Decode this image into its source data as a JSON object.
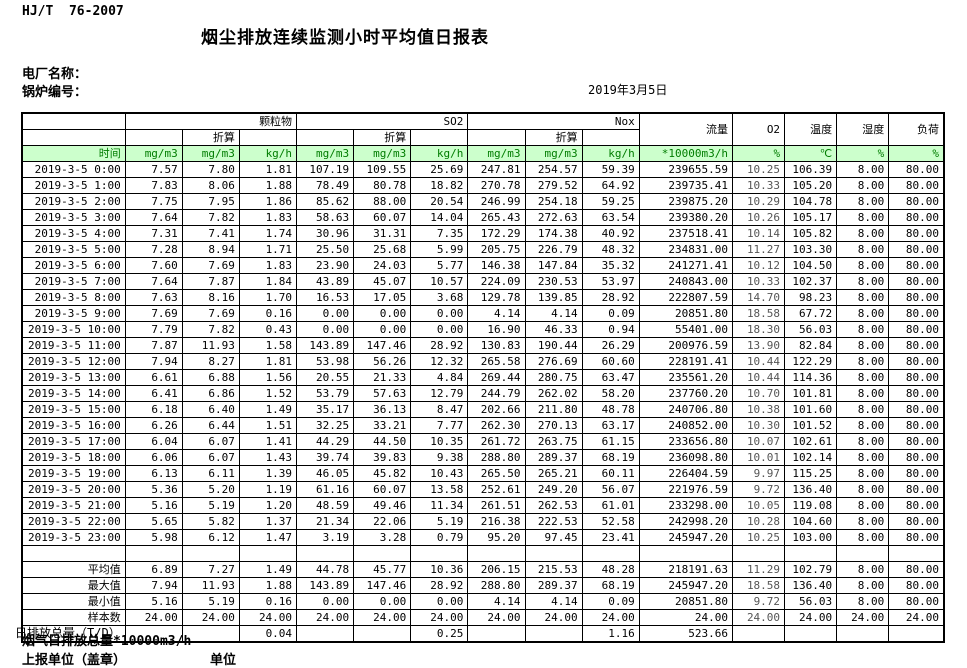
{
  "header": {
    "standard_code": "HJ/T  76-2007",
    "title": "烟尘排放连续监测小时平均值日报表",
    "plant_label": "电厂名称：",
    "boiler_label": "锅炉编号：",
    "date": "2019年3月5日"
  },
  "table": {
    "group_pm": "颗粒物",
    "group_so2": "SO2",
    "group_nox": "Nox",
    "group_flow": "流量",
    "group_o2": "O2",
    "group_temp": "温度",
    "group_humidity": "湿度",
    "group_load": "负荷",
    "converted_label": "折算",
    "time_header": "时间",
    "units": [
      "mg/m3",
      "mg/m3",
      "kg/h",
      "mg/m3",
      "mg/m3",
      "kg/h",
      "mg/m3",
      "mg/m3",
      "kg/h",
      "*10000m3/h",
      "%",
      "℃",
      "%",
      "%"
    ],
    "rows": [
      {
        "time": "2019-3-5 0:00",
        "values": [
          "7.57",
          "7.80",
          "1.81",
          "107.19",
          "109.55",
          "25.69",
          "247.81",
          "254.57",
          "59.39",
          "239655.59",
          "10.25",
          "106.39",
          "8.00",
          "80.00"
        ]
      },
      {
        "time": "2019-3-5 1:00",
        "values": [
          "7.83",
          "8.06",
          "1.88",
          "78.49",
          "80.78",
          "18.82",
          "270.78",
          "279.52",
          "64.92",
          "239735.41",
          "10.33",
          "105.20",
          "8.00",
          "80.00"
        ]
      },
      {
        "time": "2019-3-5 2:00",
        "values": [
          "7.75",
          "7.95",
          "1.86",
          "85.62",
          "88.00",
          "20.54",
          "246.99",
          "254.18",
          "59.25",
          "239875.20",
          "10.29",
          "104.78",
          "8.00",
          "80.00"
        ]
      },
      {
        "time": "2019-3-5 3:00",
        "values": [
          "7.64",
          "7.82",
          "1.83",
          "58.63",
          "60.07",
          "14.04",
          "265.43",
          "272.63",
          "63.54",
          "239380.20",
          "10.26",
          "105.17",
          "8.00",
          "80.00"
        ]
      },
      {
        "time": "2019-3-5 4:00",
        "values": [
          "7.31",
          "7.41",
          "1.74",
          "30.96",
          "31.31",
          "7.35",
          "172.29",
          "174.38",
          "40.92",
          "237518.41",
          "10.14",
          "105.82",
          "8.00",
          "80.00"
        ]
      },
      {
        "time": "2019-3-5 5:00",
        "values": [
          "7.28",
          "8.94",
          "1.71",
          "25.50",
          "25.68",
          "5.99",
          "205.75",
          "226.79",
          "48.32",
          "234831.00",
          "11.27",
          "103.30",
          "8.00",
          "80.00"
        ]
      },
      {
        "time": "2019-3-5 6:00",
        "values": [
          "7.60",
          "7.69",
          "1.83",
          "23.90",
          "24.03",
          "5.77",
          "146.38",
          "147.84",
          "35.32",
          "241271.41",
          "10.12",
          "104.50",
          "8.00",
          "80.00"
        ]
      },
      {
        "time": "2019-3-5 7:00",
        "values": [
          "7.64",
          "7.87",
          "1.84",
          "43.89",
          "45.07",
          "10.57",
          "224.09",
          "230.53",
          "53.97",
          "240843.00",
          "10.33",
          "102.37",
          "8.00",
          "80.00"
        ]
      },
      {
        "time": "2019-3-5 8:00",
        "values": [
          "7.63",
          "8.16",
          "1.70",
          "16.53",
          "17.05",
          "3.68",
          "129.78",
          "139.85",
          "28.92",
          "222807.59",
          "14.70",
          "98.23",
          "8.00",
          "80.00"
        ]
      },
      {
        "time": "2019-3-5 9:00",
        "values": [
          "7.69",
          "7.69",
          "0.16",
          "0.00",
          "0.00",
          "0.00",
          "4.14",
          "4.14",
          "0.09",
          "20851.80",
          "18.58",
          "67.72",
          "8.00",
          "80.00"
        ]
      },
      {
        "time": "2019-3-5 10:00",
        "values": [
          "7.79",
          "7.82",
          "0.43",
          "0.00",
          "0.00",
          "0.00",
          "16.90",
          "46.33",
          "0.94",
          "55401.00",
          "18.30",
          "56.03",
          "8.00",
          "80.00"
        ]
      },
      {
        "time": "2019-3-5 11:00",
        "values": [
          "7.87",
          "11.93",
          "1.58",
          "143.89",
          "147.46",
          "28.92",
          "130.83",
          "190.44",
          "26.29",
          "200976.59",
          "13.90",
          "82.84",
          "8.00",
          "80.00"
        ]
      },
      {
        "time": "2019-3-5 12:00",
        "values": [
          "7.94",
          "8.27",
          "1.81",
          "53.98",
          "56.26",
          "12.32",
          "265.58",
          "276.69",
          "60.60",
          "228191.41",
          "10.44",
          "122.29",
          "8.00",
          "80.00"
        ]
      },
      {
        "time": "2019-3-5 13:00",
        "values": [
          "6.61",
          "6.88",
          "1.56",
          "20.55",
          "21.33",
          "4.84",
          "269.44",
          "280.75",
          "63.47",
          "235561.20",
          "10.44",
          "114.36",
          "8.00",
          "80.00"
        ]
      },
      {
        "time": "2019-3-5 14:00",
        "values": [
          "6.41",
          "6.86",
          "1.52",
          "53.79",
          "57.63",
          "12.79",
          "244.79",
          "262.02",
          "58.20",
          "237760.20",
          "10.70",
          "101.81",
          "8.00",
          "80.00"
        ]
      },
      {
        "time": "2019-3-5 15:00",
        "values": [
          "6.18",
          "6.40",
          "1.49",
          "35.17",
          "36.13",
          "8.47",
          "202.66",
          "211.80",
          "48.78",
          "240706.80",
          "10.38",
          "101.60",
          "8.00",
          "80.00"
        ]
      },
      {
        "time": "2019-3-5 16:00",
        "values": [
          "6.26",
          "6.44",
          "1.51",
          "32.25",
          "33.21",
          "7.77",
          "262.30",
          "270.13",
          "63.17",
          "240852.00",
          "10.30",
          "101.52",
          "8.00",
          "80.00"
        ]
      },
      {
        "time": "2019-3-5 17:00",
        "values": [
          "6.04",
          "6.07",
          "1.41",
          "44.29",
          "44.50",
          "10.35",
          "261.72",
          "263.75",
          "61.15",
          "233656.80",
          "10.07",
          "102.61",
          "8.00",
          "80.00"
        ]
      },
      {
        "time": "2019-3-5 18:00",
        "values": [
          "6.06",
          "6.07",
          "1.43",
          "39.74",
          "39.83",
          "9.38",
          "288.80",
          "289.37",
          "68.19",
          "236098.80",
          "10.01",
          "102.14",
          "8.00",
          "80.00"
        ]
      },
      {
        "time": "2019-3-5 19:00",
        "values": [
          "6.13",
          "6.11",
          "1.39",
          "46.05",
          "45.82",
          "10.43",
          "265.50",
          "265.21",
          "60.11",
          "226404.59",
          "9.97",
          "115.25",
          "8.00",
          "80.00"
        ]
      },
      {
        "time": "2019-3-5 20:00",
        "values": [
          "5.36",
          "5.20",
          "1.19",
          "61.16",
          "60.07",
          "13.58",
          "252.61",
          "249.20",
          "56.07",
          "221976.59",
          "9.72",
          "136.40",
          "8.00",
          "80.00"
        ]
      },
      {
        "time": "2019-3-5 21:00",
        "values": [
          "5.16",
          "5.19",
          "1.20",
          "48.59",
          "49.46",
          "11.34",
          "261.51",
          "262.53",
          "61.01",
          "233298.00",
          "10.05",
          "119.08",
          "8.00",
          "80.00"
        ]
      },
      {
        "time": "2019-3-5 22:00",
        "values": [
          "5.65",
          "5.82",
          "1.37",
          "21.34",
          "22.06",
          "5.19",
          "216.38",
          "222.53",
          "52.58",
          "242998.20",
          "10.28",
          "104.60",
          "8.00",
          "80.00"
        ]
      },
      {
        "time": "2019-3-5 23:00",
        "values": [
          "5.98",
          "6.12",
          "1.47",
          "3.19",
          "3.28",
          "0.79",
          "95.20",
          "97.45",
          "23.41",
          "245947.20",
          "10.25",
          "103.00",
          "8.00",
          "80.00"
        ]
      }
    ],
    "summary": [
      {
        "label": "平均值",
        "values": [
          "6.89",
          "7.27",
          "1.49",
          "44.78",
          "45.77",
          "10.36",
          "206.15",
          "215.53",
          "48.28",
          "218191.63",
          "11.29",
          "102.79",
          "8.00",
          "80.00"
        ]
      },
      {
        "label": "最大值",
        "values": [
          "7.94",
          "11.93",
          "1.88",
          "143.89",
          "147.46",
          "28.92",
          "288.80",
          "289.37",
          "68.19",
          "245947.20",
          "18.58",
          "136.40",
          "8.00",
          "80.00"
        ]
      },
      {
        "label": "最小值",
        "values": [
          "5.16",
          "5.19",
          "0.16",
          "0.00",
          "0.00",
          "0.00",
          "4.14",
          "4.14",
          "0.09",
          "20851.80",
          "9.72",
          "56.03",
          "8.00",
          "80.00"
        ]
      },
      {
        "label": "样本数",
        "values": [
          "24.00",
          "24.00",
          "24.00",
          "24.00",
          "24.00",
          "24.00",
          "24.00",
          "24.00",
          "24.00",
          "24.00",
          "24.00",
          "24.00",
          "24.00",
          "24.00"
        ]
      },
      {
        "label": "日排放总量（T/D）",
        "values": [
          "",
          "",
          "0.04",
          "",
          "",
          "0.25",
          "",
          "",
          "1.16",
          "523.66",
          "",
          "",
          "",
          ""
        ]
      }
    ]
  },
  "footer": {
    "flue_total_label": "烟气日排放总量*10000m3/h",
    "report_unit_label": "上报单位（盖章）",
    "unit_label": "单位"
  }
}
